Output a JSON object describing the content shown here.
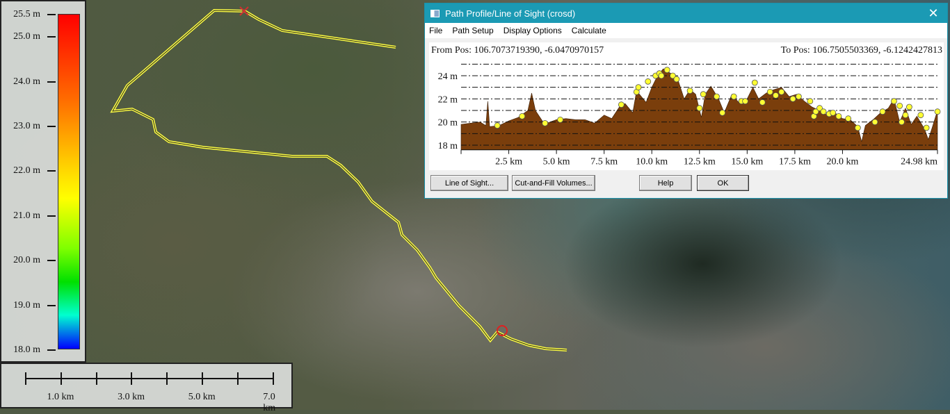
{
  "legend": {
    "unit": "m",
    "ticks": [
      {
        "label": "25.5 m",
        "value": 25.5
      },
      {
        "label": "25.0 m",
        "value": 25.0
      },
      {
        "label": "24.0 m",
        "value": 24.0
      },
      {
        "label": "23.0 m",
        "value": 23.0
      },
      {
        "label": "22.0 m",
        "value": 22.0
      },
      {
        "label": "21.0 m",
        "value": 21.0
      },
      {
        "label": "20.0 m",
        "value": 20.0
      },
      {
        "label": "19.0 m",
        "value": 19.0
      },
      {
        "label": "18.0 m",
        "value": 18.0
      }
    ],
    "range": [
      18.0,
      25.5
    ],
    "colors": [
      "#0000ff",
      "#00ffd0",
      "#00e000",
      "#ffff00",
      "#ff6a00",
      "#ff0000"
    ]
  },
  "scale_bar": {
    "labels": [
      "1.0 km",
      "3.0 km",
      "5.0 km",
      "7.0 km"
    ]
  },
  "dialog": {
    "title": "Path Profile/Line of Sight (crosd)",
    "close": "✕",
    "menu": [
      "File",
      "Path Setup",
      "Display Options",
      "Calculate"
    ],
    "from_pos": "From Pos: 106.7073719390, -6.0470970157",
    "to_pos": "To Pos: 106.7505503369, -6.1242427813",
    "buttons": {
      "line_of_sight": "Line of Sight...",
      "cut_fill": "Cut-and-Fill Volumes...",
      "help": "Help",
      "ok": "OK"
    }
  },
  "chart_data": {
    "type": "area",
    "fill_color": "#7a3e0c",
    "marker_color": "#ffff33",
    "xlim": [
      0,
      24.98
    ],
    "ylim": [
      17.6,
      25.2
    ],
    "x_ticks": [
      {
        "v": 2.5,
        "label": "2.5 km"
      },
      {
        "v": 5.0,
        "label": "5.0 km"
      },
      {
        "v": 7.5,
        "label": "7.5 km"
      },
      {
        "v": 10.0,
        "label": "10.0 km"
      },
      {
        "v": 12.5,
        "label": "12.5 km"
      },
      {
        "v": 15.0,
        "label": "15.0 km"
      },
      {
        "v": 17.5,
        "label": "17.5 km"
      },
      {
        "v": 20.0,
        "label": "20.0 km"
      },
      {
        "v": 24.98,
        "label": "24.98 km"
      }
    ],
    "y_ticks": [
      {
        "v": 18,
        "label": "18 m"
      },
      {
        "v": 20,
        "label": "20 m"
      },
      {
        "v": 22,
        "label": "22 m"
      },
      {
        "v": 24,
        "label": "24 m"
      }
    ],
    "gridlines": [
      18,
      19,
      20,
      21,
      22,
      23,
      24,
      25
    ],
    "x": [
      0,
      0.5,
      1.0,
      1.3,
      1.4,
      1.5,
      2.0,
      2.5,
      3.0,
      3.5,
      3.7,
      3.9,
      4.3,
      4.5,
      5.0,
      5.5,
      6.0,
      6.5,
      7.0,
      7.5,
      7.9,
      8.3,
      8.6,
      9.0,
      9.2,
      9.4,
      9.7,
      10.0,
      10.3,
      10.6,
      11.0,
      11.4,
      11.7,
      12.0,
      12.3,
      12.6,
      12.8,
      13.1,
      13.5,
      13.8,
      14.2,
      14.6,
      15.0,
      15.3,
      15.6,
      16.0,
      16.4,
      16.8,
      17.2,
      17.6,
      18.0,
      18.4,
      18.8,
      19.2,
      19.6,
      20.0,
      20.4,
      20.8,
      21.0,
      21.2,
      21.6,
      22.0,
      22.4,
      22.7,
      23.0,
      23.3,
      23.6,
      23.9,
      24.3,
      24.5,
      24.7,
      24.98
    ],
    "y": [
      19.8,
      19.9,
      20.0,
      19.7,
      21.8,
      19.6,
      19.7,
      20.1,
      20.4,
      21.0,
      22.5,
      21.0,
      20.0,
      19.9,
      20.2,
      20.3,
      20.2,
      20.2,
      19.9,
      20.6,
      20.3,
      21.3,
      21.6,
      20.8,
      22.7,
      22.3,
      21.7,
      23.0,
      24.0,
      24.6,
      24.2,
      23.5,
      22.0,
      22.8,
      22.4,
      20.4,
      22.4,
      23.1,
      22.0,
      20.8,
      22.4,
      21.6,
      22.0,
      23.0,
      22.0,
      22.5,
      22.8,
      23.0,
      22.2,
      22.4,
      21.8,
      21.3,
      21.0,
      20.6,
      20.8,
      20.3,
      20.2,
      19.6,
      18.3,
      19.7,
      20.2,
      20.8,
      21.2,
      22.0,
      20.0,
      21.2,
      19.8,
      20.5,
      19.4,
      18.5,
      19.5,
      21.0
    ],
    "markers": [
      {
        "x": 1.9,
        "y": 19.7
      },
      {
        "x": 3.2,
        "y": 20.5
      },
      {
        "x": 4.4,
        "y": 19.9
      },
      {
        "x": 5.2,
        "y": 20.2
      },
      {
        "x": 8.4,
        "y": 21.5
      },
      {
        "x": 9.2,
        "y": 22.6
      },
      {
        "x": 9.3,
        "y": 23.0
      },
      {
        "x": 9.8,
        "y": 23.5
      },
      {
        "x": 10.2,
        "y": 24.0
      },
      {
        "x": 10.4,
        "y": 24.2
      },
      {
        "x": 10.5,
        "y": 24.0
      },
      {
        "x": 10.8,
        "y": 24.5
      },
      {
        "x": 11.1,
        "y": 24.0
      },
      {
        "x": 11.3,
        "y": 23.7
      },
      {
        "x": 12.0,
        "y": 22.7
      },
      {
        "x": 12.5,
        "y": 21.2
      },
      {
        "x": 12.7,
        "y": 22.4
      },
      {
        "x": 13.4,
        "y": 22.2
      },
      {
        "x": 13.7,
        "y": 20.8
      },
      {
        "x": 14.3,
        "y": 22.2
      },
      {
        "x": 14.7,
        "y": 21.8
      },
      {
        "x": 14.9,
        "y": 21.8
      },
      {
        "x": 15.4,
        "y": 23.4
      },
      {
        "x": 15.8,
        "y": 21.7
      },
      {
        "x": 16.2,
        "y": 22.6
      },
      {
        "x": 16.5,
        "y": 22.3
      },
      {
        "x": 16.8,
        "y": 22.6
      },
      {
        "x": 17.4,
        "y": 22.0
      },
      {
        "x": 17.7,
        "y": 22.2
      },
      {
        "x": 18.3,
        "y": 21.8
      },
      {
        "x": 18.5,
        "y": 20.5
      },
      {
        "x": 18.6,
        "y": 20.9
      },
      {
        "x": 18.8,
        "y": 21.2
      },
      {
        "x": 19.0,
        "y": 20.9
      },
      {
        "x": 19.3,
        "y": 20.7
      },
      {
        "x": 19.5,
        "y": 20.8
      },
      {
        "x": 19.8,
        "y": 20.5
      },
      {
        "x": 20.3,
        "y": 20.3
      },
      {
        "x": 20.8,
        "y": 19.5
      },
      {
        "x": 21.7,
        "y": 20.0
      },
      {
        "x": 22.1,
        "y": 20.9
      },
      {
        "x": 22.7,
        "y": 21.8
      },
      {
        "x": 23.0,
        "y": 21.4
      },
      {
        "x": 23.1,
        "y": 20.0
      },
      {
        "x": 23.3,
        "y": 20.6
      },
      {
        "x": 23.5,
        "y": 21.3
      },
      {
        "x": 24.1,
        "y": 20.6
      },
      {
        "x": 24.4,
        "y": 19.5
      },
      {
        "x": 24.98,
        "y": 20.9
      }
    ]
  }
}
